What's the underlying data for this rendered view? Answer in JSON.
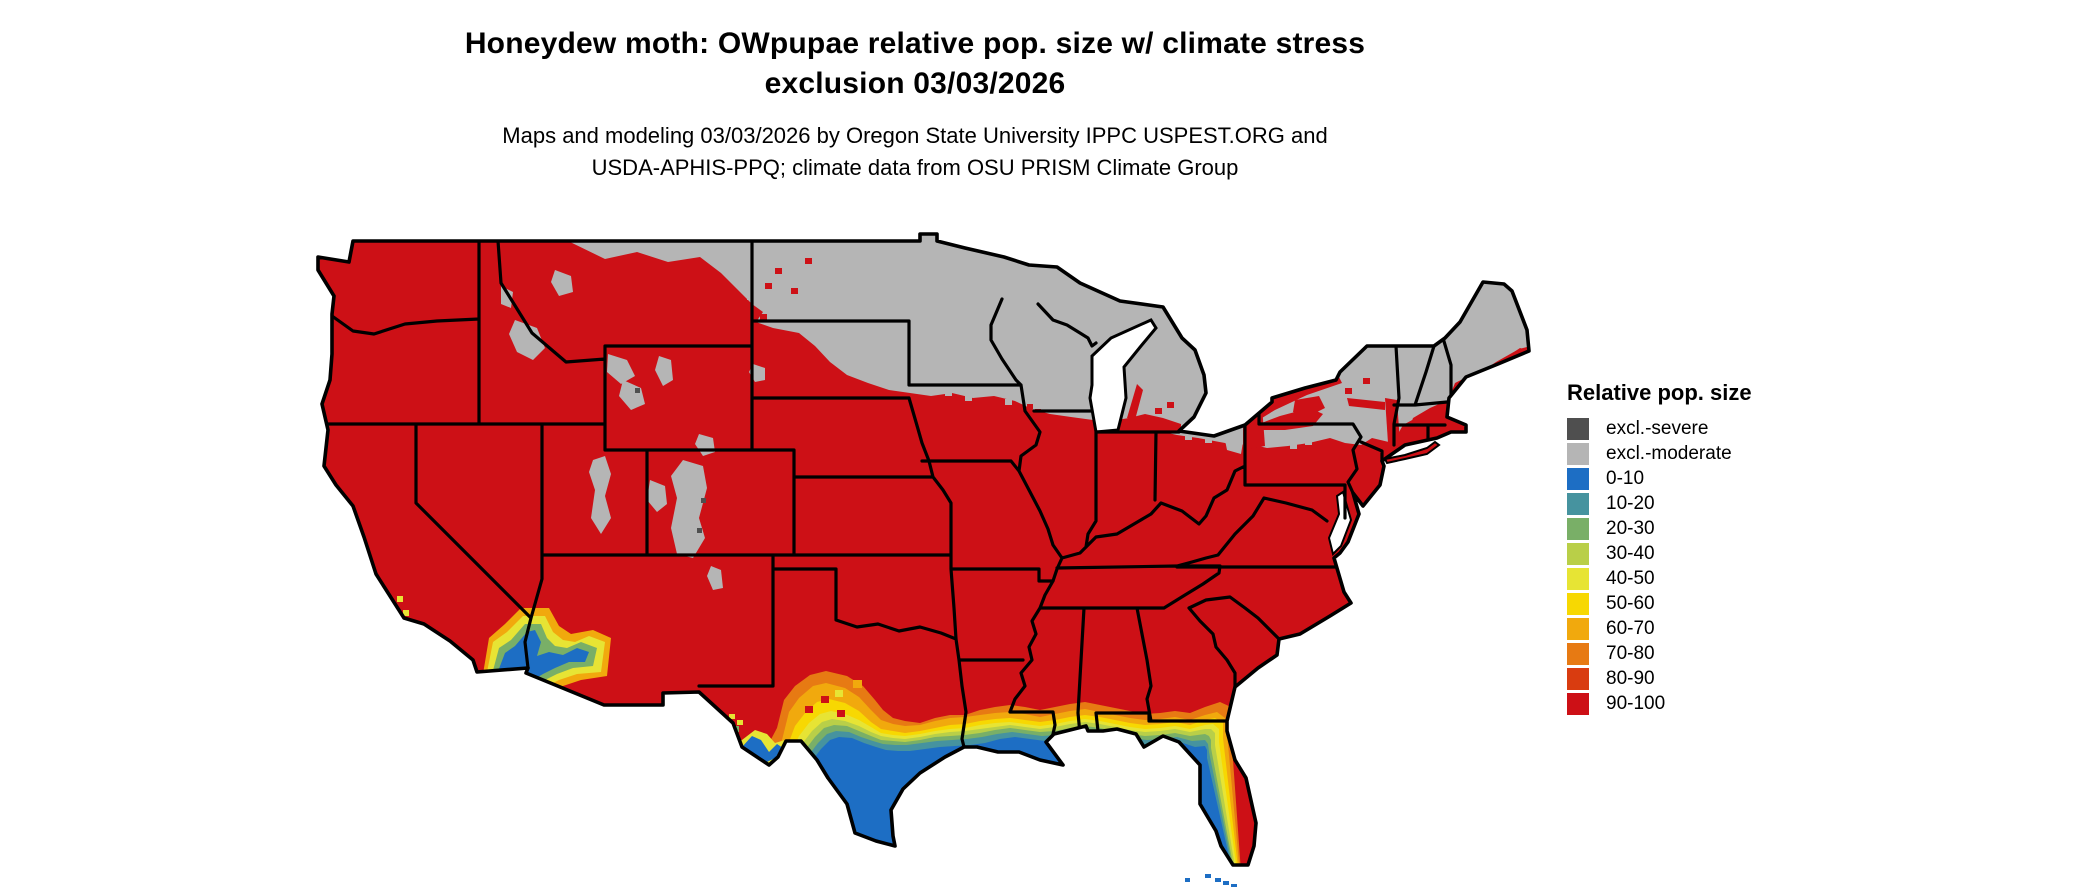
{
  "header": {
    "title_line1": "Honeydew moth: OWpupae relative pop. size w/ climate stress",
    "title_line2": "exclusion 03/03/2026",
    "subtitle_line1": "Maps and modeling 03/03/2026 by Oregon State University IPPC USPEST.ORG and",
    "subtitle_line2": "USDA-APHIS-PPQ; climate data from OSU PRISM Climate Group"
  },
  "legend": {
    "title": "Relative pop. size",
    "items": [
      {
        "label": "excl.-severe",
        "color": "#4f4f4f"
      },
      {
        "label": "excl.-moderate",
        "color": "#b5b5b5"
      },
      {
        "label": "0-10",
        "color": "#1d6ec4"
      },
      {
        "label": "10-20",
        "color": "#46939f"
      },
      {
        "label": "20-30",
        "color": "#79af67"
      },
      {
        "label": "30-40",
        "color": "#b9cf48"
      },
      {
        "label": "40-50",
        "color": "#e7e434"
      },
      {
        "label": "50-60",
        "color": "#f7d802"
      },
      {
        "label": "60-70",
        "color": "#f1a90d"
      },
      {
        "label": "70-80",
        "color": "#e77a13"
      },
      {
        "label": "80-90",
        "color": "#d93c10"
      },
      {
        "label": "90-100",
        "color": "#cd1016"
      }
    ]
  },
  "map": {
    "outline_color": "#000000",
    "water_color": "#ffffff"
  }
}
